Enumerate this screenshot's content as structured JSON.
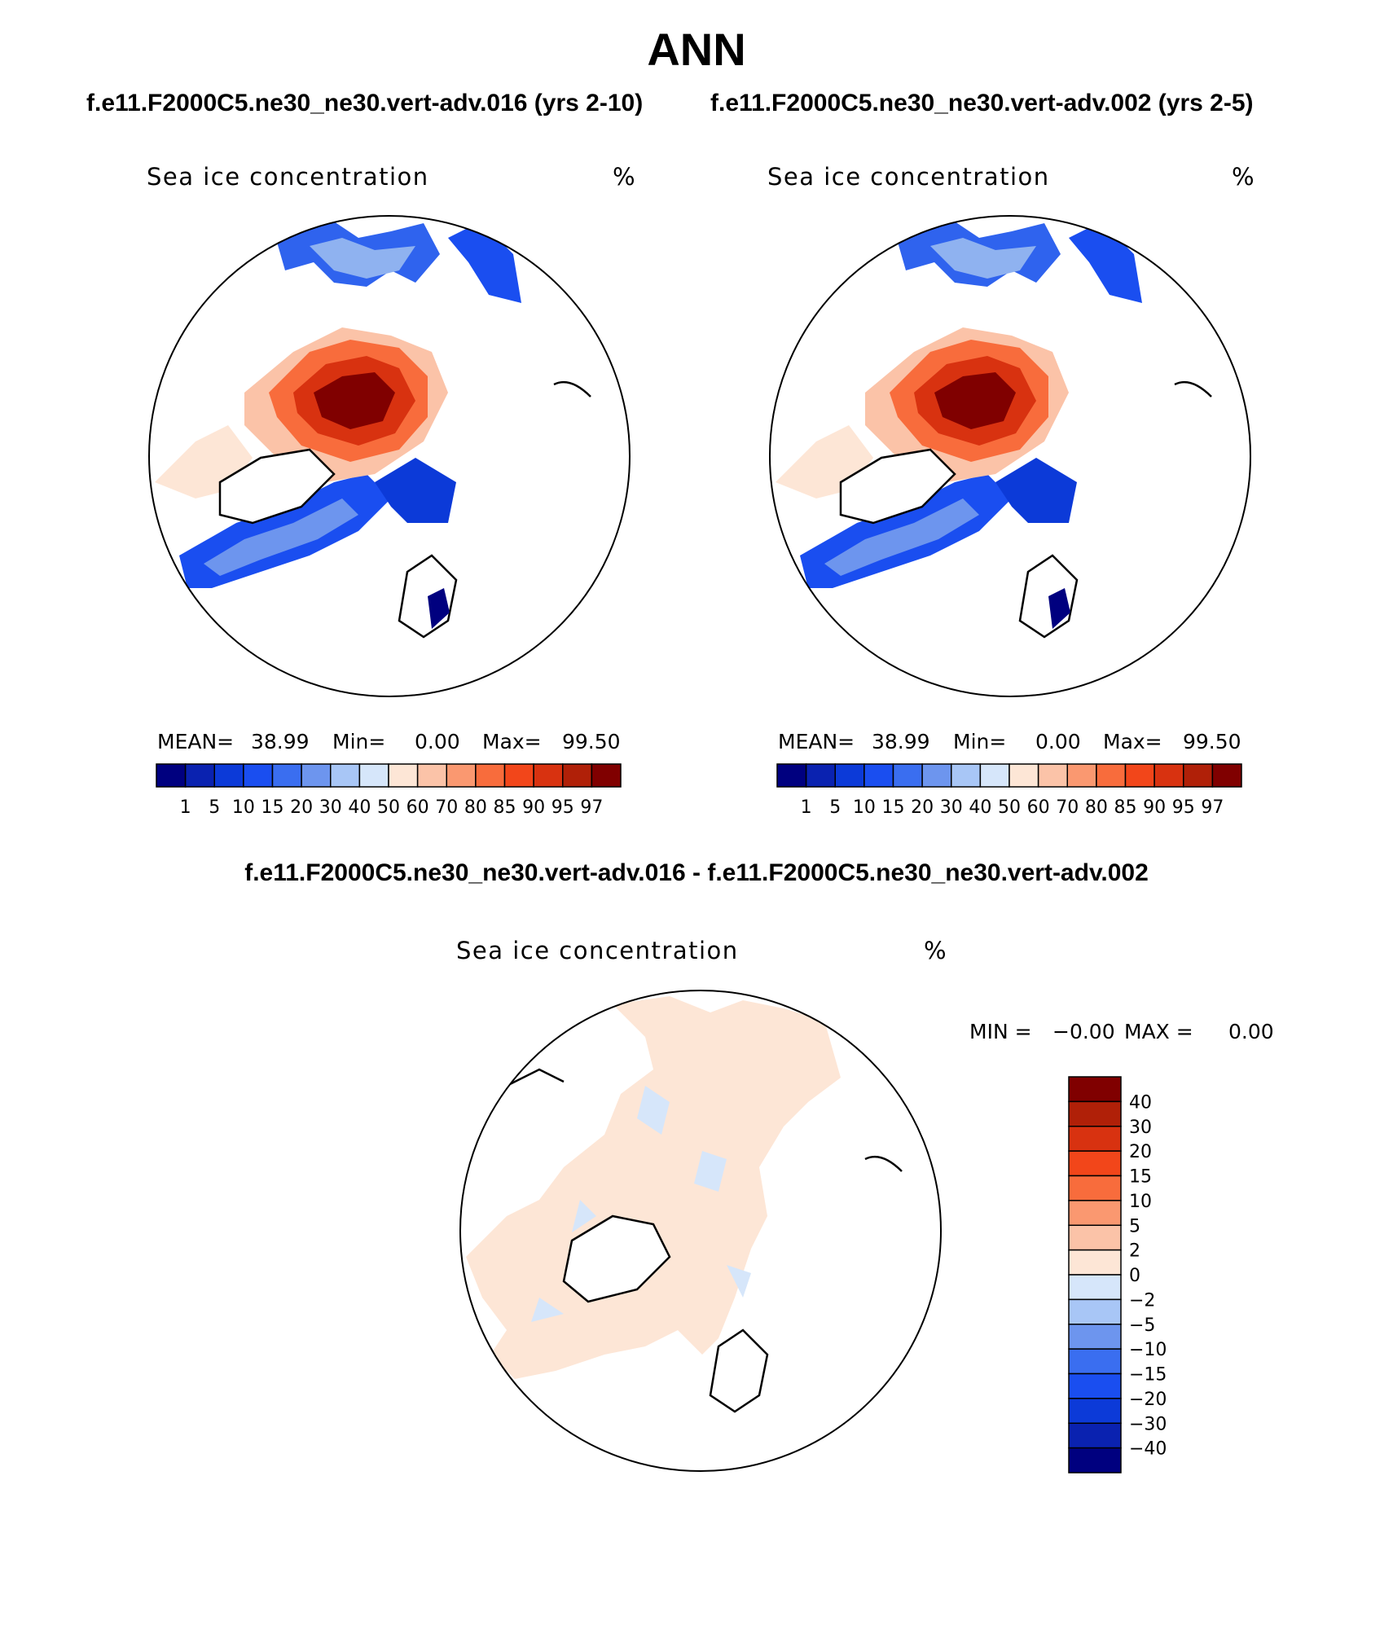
{
  "title": "ANN",
  "case1_title": "f.e11.F2000C5.ne30_ne30.vert-adv.016 (yrs 2-10)",
  "case2_title": "f.e11.F2000C5.ne30_ne30.vert-adv.002 (yrs 2-5)",
  "diff_title": "f.e11.F2000C5.ne30_ne30.vert-adv.016 - f.e11.F2000C5.ne30_ne30.vert-adv.002",
  "panels": [
    {
      "label": "Sea ice concentration",
      "units": "%",
      "mean_label": "MEAN=",
      "mean": "38.99",
      "min_label": "Min=",
      "min": "0.00",
      "max_label": "Max=",
      "max": "99.50"
    },
    {
      "label": "Sea ice concentration",
      "units": "%",
      "mean_label": "MEAN=",
      "mean": "38.99",
      "min_label": "Min=",
      "min": "0.00",
      "max_label": "Max=",
      "max": "99.50"
    },
    {
      "label": "Sea ice concentration",
      "units": "%",
      "min_label": "MIN =",
      "min": "−0.00",
      "max_label": "MAX =",
      "max": "0.00"
    }
  ],
  "colorbar_abs": {
    "levels": [
      "1",
      "5",
      "10",
      "15",
      "20",
      "30",
      "40",
      "50",
      "60",
      "70",
      "80",
      "85",
      "90",
      "95",
      "97"
    ],
    "colors": [
      "#00007f",
      "#0a22b0",
      "#0c3ad8",
      "#1a4ef0",
      "#3a6ef0",
      "#6d95ee",
      "#a8c6f6",
      "#d6e6fa",
      "#fde6d6",
      "#fbc3a8",
      "#fa9870",
      "#f86c3c",
      "#f2461a",
      "#d83210",
      "#b02008",
      "#800000"
    ]
  },
  "colorbar_diff": {
    "levels": [
      "40",
      "30",
      "20",
      "15",
      "10",
      "5",
      "2",
      "0",
      "−2",
      "−5",
      "−10",
      "−15",
      "−20",
      "−30",
      "−40"
    ],
    "colors": [
      "#800000",
      "#b02008",
      "#d83210",
      "#f2461a",
      "#f86c3c",
      "#fa9870",
      "#fbc3a8",
      "#fde6d6",
      "#d6e6fa",
      "#a8c6f6",
      "#6d95ee",
      "#3a6ef0",
      "#1a4ef0",
      "#0c3ad8",
      "#0a22b0",
      "#00007f"
    ]
  }
}
